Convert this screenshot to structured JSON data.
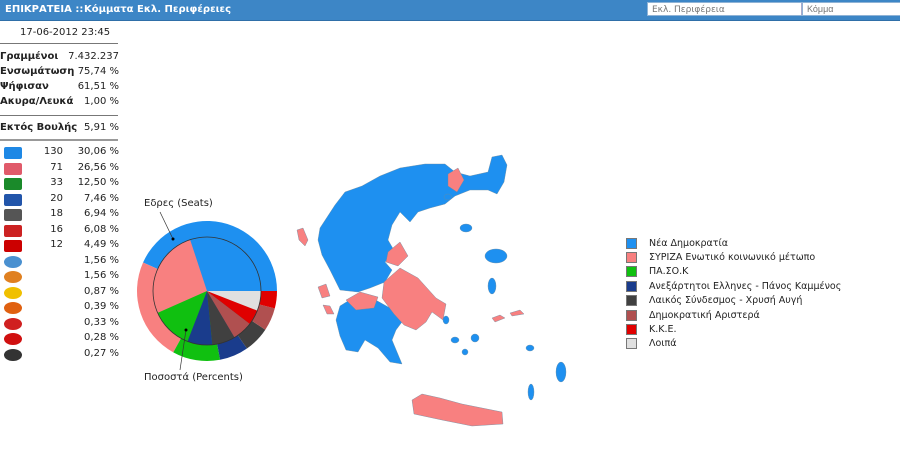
{
  "nav": {
    "home": "ΕΠΙΚΡΑΤΕΙΑ ::",
    "parties": "Κόμματα",
    "regions": "Εκλ. Περιφέρειες"
  },
  "filters": {
    "region_select": "Εκλ. Περιφέρεια",
    "party_input_placeholder": "Κόμμα"
  },
  "date": "17-06-2012 23:45",
  "stats": [
    {
      "label": "Γραμμένοι",
      "value": "7.432.237"
    },
    {
      "label": "Ενσωμάτωση",
      "value": "75,74 %"
    },
    {
      "label": "Ψήφισαν",
      "value": "61,51 %"
    },
    {
      "label": "Ακυρα/Λευκά",
      "value": "1,00 %"
    }
  ],
  "outside": {
    "label": "Εκτός Βουλής",
    "value": "5,91 %"
  },
  "parties": [
    {
      "logo": "nd-logo",
      "color": "#1e88e5",
      "seats": "130",
      "pct": "30,06 %"
    },
    {
      "logo": "syriza-logo",
      "color": "#e05a6a",
      "seats": "71",
      "pct": "26,56 %"
    },
    {
      "logo": "pasok-logo",
      "color": "#1a8a2a",
      "seats": "33",
      "pct": "12,50 %"
    },
    {
      "logo": "anel-logo",
      "color": "#2255aa",
      "seats": "20",
      "pct": "7,46 %"
    },
    {
      "logo": "xa-logo",
      "color": "#555555",
      "seats": "18",
      "pct": "6,94 %"
    },
    {
      "logo": "dimar-logo",
      "color": "#cc2222",
      "seats": "16",
      "pct": "6,08 %"
    },
    {
      "logo": "kke-logo",
      "color": "#cc0000",
      "seats": "12",
      "pct": "4,49 %"
    },
    {
      "logo": "party-logo",
      "color": "#4a90d0",
      "seats": "",
      "pct": "1,56 %"
    },
    {
      "logo": "party-logo",
      "color": "#e08020",
      "seats": "",
      "pct": "1,56 %"
    },
    {
      "logo": "greens-logo",
      "color": "#f0c000",
      "seats": "",
      "pct": "0,87 %"
    },
    {
      "logo": "party-logo",
      "color": "#e06010",
      "seats": "",
      "pct": "0,39 %"
    },
    {
      "logo": "party-logo",
      "color": "#d02020",
      "seats": "",
      "pct": "0,33 %"
    },
    {
      "logo": "koinonia-logo",
      "color": "#d01010",
      "seats": "",
      "pct": "0,28 %"
    },
    {
      "logo": "person-logo",
      "color": "#333333",
      "seats": "",
      "pct": "0,27 %"
    }
  ],
  "chart_data": {
    "type": "pie",
    "outer_label": "Εδρες (Seats)",
    "inner_label": "Ποσοστά (Percents)",
    "series": [
      {
        "name": "Νέα Δημοκρατία",
        "color": "#1e90f0",
        "seats": 130,
        "percent": 30.06
      },
      {
        "name": "ΣΥΡΙΖΑ Ενωτικό κοινωνικό μέτωπο",
        "color": "#f88080",
        "seats": 71,
        "percent": 26.56
      },
      {
        "name": "ΠΑ.ΣΟ.Κ",
        "color": "#10c010",
        "seats": 33,
        "percent": 12.5
      },
      {
        "name": "Ανεξάρτητοι Ελληνες - Πάνος Καμμένος",
        "color": "#1a3c8c",
        "seats": 20,
        "percent": 7.46
      },
      {
        "name": "Λαικός Σύνδεσμος - Χρυσή Αυγή",
        "color": "#404040",
        "seats": 18,
        "percent": 6.94
      },
      {
        "name": "Δημοκρατική Αριστερά",
        "color": "#b05050",
        "seats": 16,
        "percent": 6.08
      },
      {
        "name": "Κ.Κ.Ε.",
        "color": "#e00000",
        "seats": 12,
        "percent": 4.49
      },
      {
        "name": "Λοιπά",
        "color": "#e0e0e0",
        "seats": 0,
        "percent": 5.91
      }
    ]
  }
}
